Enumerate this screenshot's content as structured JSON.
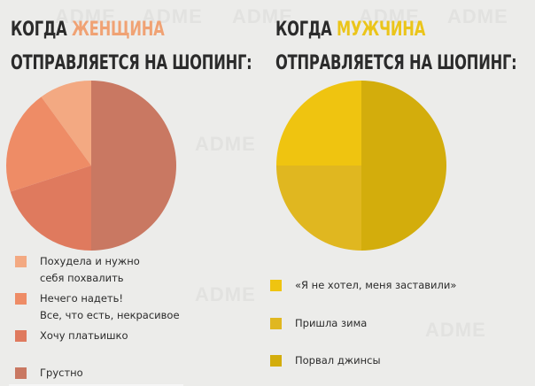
{
  "watermark": "ADME",
  "colors": {
    "background": "#ececea",
    "title_text": "#2b2b2b",
    "accent_woman": "#f0a274",
    "accent_man": "#ebc51a"
  },
  "left": {
    "title_line1_prefix": "КОГДА",
    "title_line1_accent": "ЖЕНЩИНА",
    "title_line2": "ОТПРАВЛЯЕТСЯ НА ШОПИНГ:",
    "legend": [
      {
        "line1": "Похудела и нужно",
        "line2": "себя похвалить",
        "color": "#f3a982"
      },
      {
        "line1": "Нечего надеть!",
        "line2": "Все, что есть, некрасивое",
        "color": "#ee8c66"
      },
      {
        "line1": "Хочу платьишко",
        "line2": "",
        "color": "#df7a5e"
      },
      {
        "line1": "Грустно",
        "line2": "",
        "color": "#c97862"
      }
    ]
  },
  "right": {
    "title_line1_prefix": "КОГДА",
    "title_line1_accent": "МУЖЧИНА",
    "title_line2": "ОТПРАВЛЯЕТСЯ НА ШОПИНГ:",
    "legend": [
      {
        "line1": "«Я не хотел, меня заставили»",
        "color": "#efc410"
      },
      {
        "line1": "Пришла зима",
        "color": "#e0b720"
      },
      {
        "line1": "Порвал джинсы",
        "color": "#d3ad0c"
      }
    ]
  },
  "chart_data": [
    {
      "type": "pie",
      "title": "КОГДА ЖЕНЩИНА ОТПРАВЛЯЕТСЯ НА ШОПИНГ:",
      "categories": [
        "Похудела и нужно себя похвалить",
        "Нечего надеть! Все, что есть, некрасивое",
        "Хочу платьишко",
        "Грустно"
      ],
      "values": [
        10,
        20,
        20,
        50
      ],
      "colors": [
        "#f3a982",
        "#ee8c66",
        "#df7a5e",
        "#c97862"
      ],
      "legend_position": "bottom"
    },
    {
      "type": "pie",
      "title": "КОГДА МУЖЧИНА ОТПРАВЛЯЕТСЯ НА ШОПИНГ:",
      "categories": [
        "«Я не хотел, меня заставили»",
        "Пришла зима",
        "Порвал джинсы"
      ],
      "values": [
        25,
        25,
        50
      ],
      "colors": [
        "#efc410",
        "#e0b720",
        "#d3ad0c"
      ],
      "legend_position": "bottom"
    }
  ]
}
